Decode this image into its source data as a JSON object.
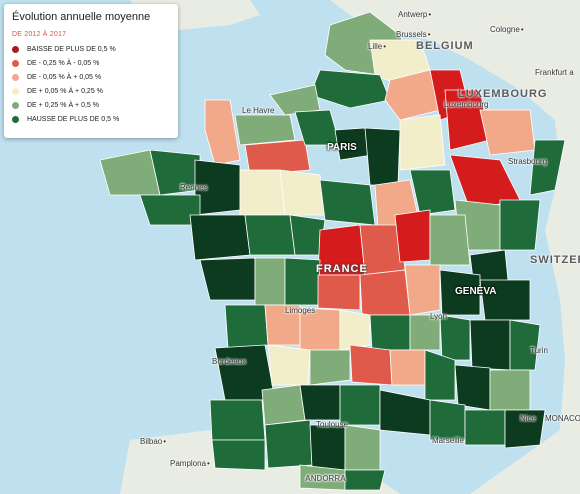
{
  "legend": {
    "title": "Évolution annuelle moyenne",
    "subtitle": "DE 2012 À 2017",
    "items": [
      {
        "label": "BAISSE DE PLUS DE 0,5 %",
        "color": "#a31c1c"
      },
      {
        "label": "DE - 0,25 % À - 0,05 %",
        "color": "#e05a4c"
      },
      {
        "label": "DE - 0,05 % À + 0,05 %",
        "color": "#f2a98a"
      },
      {
        "label": "DE + 0,05 % À + 0,25 %",
        "color": "#f1eec9"
      },
      {
        "label": "DE + 0,25 % À + 0,5 %",
        "color": "#7fac78"
      },
      {
        "label": "HAUSSE DE PLUS DE 0,5 %",
        "color": "#1f6b3a"
      }
    ]
  },
  "cities": {
    "antwerp": "Antwerp",
    "brussels": "Brussels",
    "cologne": "Cologne",
    "lille": "Lille",
    "frankfurt": "Frankfurt a",
    "lehavre": "Le Havre",
    "paris": "PARIS",
    "luxembourg": "Luxembourg",
    "strasbourg": "Strasbourg",
    "rennes": "Rennes",
    "geneva": "GENÈVA",
    "lyon": "Lyon",
    "limoges": "Limoges",
    "turin": "Turin",
    "bordeaux": "Bordeaux",
    "toulouse": "Toulouse",
    "nice": "Nice",
    "monaco": "MONACO",
    "marseille": "Marseille",
    "bilbao": "Bilbao",
    "pamplona": "Pamplona",
    "andorra": "ANDORRA"
  },
  "countries": {
    "belgium": "BELGIUM",
    "luxembourg": "LUXEMBOURG",
    "france": "FRANCE",
    "switzerland": "SWITZER"
  }
}
